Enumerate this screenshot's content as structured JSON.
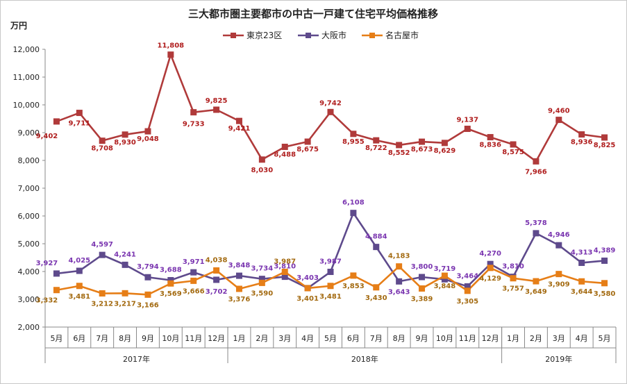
{
  "chart_data": {
    "type": "line",
    "title": "三大都市圏主要都市の中古一戸建て住宅平均価格推移",
    "yunit": "万円",
    "ylim": [
      2000,
      12000
    ],
    "ytick_step": 1000,
    "yticks": [
      "2,000",
      "3,000",
      "4,000",
      "5,000",
      "6,000",
      "7,000",
      "8,000",
      "9,000",
      "10,000",
      "11,000",
      "12,000"
    ],
    "months": [
      "5月",
      "6月",
      "7月",
      "8月",
      "9月",
      "10月",
      "11月",
      "12月",
      "1月",
      "2月",
      "3月",
      "4月",
      "5月",
      "6月",
      "7月",
      "8月",
      "9月",
      "10月",
      "11月",
      "12月",
      "1月",
      "2月",
      "3月",
      "4月",
      "5月"
    ],
    "years": [
      {
        "label": "2017年",
        "start": 0,
        "end": 7
      },
      {
        "label": "2018年",
        "start": 8,
        "end": 19
      },
      {
        "label": "2019年",
        "start": 20,
        "end": 24
      }
    ],
    "legend_position": "top-center",
    "grid": false,
    "series": [
      {
        "name": "東京23区",
        "color": "#b03a3a",
        "label_color": "#b01e1e",
        "marker": "square",
        "values": [
          9402,
          9711,
          8708,
          8930,
          9048,
          11808,
          9733,
          9825,
          9421,
          8030,
          8488,
          8675,
          9742,
          8955,
          8722,
          8552,
          8673,
          8629,
          9137,
          8836,
          8575,
          7966,
          9460,
          8936,
          8825
        ],
        "labels": [
          "9,402",
          "9,711",
          "8,708",
          "8,930",
          "9,048",
          "11,808",
          "9,733",
          "9,825",
          "9,421",
          "8,030",
          "8,488",
          "8,675",
          "9,742",
          "8,955",
          "8,722",
          "8,552",
          "8,673",
          "8,629",
          "9,137",
          "8,836",
          "8,575",
          "7,966",
          "9,460",
          "8,936",
          "8,825"
        ]
      },
      {
        "name": "大阪市",
        "color": "#5e4a8c",
        "label_color": "#7a35b0",
        "marker": "square",
        "values": [
          3927,
          4025,
          4597,
          4241,
          3794,
          3688,
          3971,
          3702,
          3848,
          3734,
          3810,
          3403,
          3987,
          6108,
          4884,
          3643,
          3800,
          3719,
          3464,
          4270,
          3810,
          5378,
          4946,
          4313,
          4389
        ],
        "labels": [
          "3,927",
          "4,025",
          "4,597",
          "4,241",
          "3,794",
          "3,688",
          "3,971",
          "3,702",
          "3,848",
          "3,734",
          "3,810",
          "3,403",
          "3,987",
          "6,108",
          "4,884",
          "3,643",
          "3,800",
          "3,719",
          "3,464",
          "4,270",
          "3,810",
          "5,378",
          "4,946",
          "4,313",
          "4,389"
        ]
      },
      {
        "name": "名古屋市",
        "color": "#e67e17",
        "label_color": "#a36a10",
        "marker": "square",
        "values": [
          3332,
          3481,
          3212,
          3217,
          3166,
          3569,
          3666,
          4038,
          3376,
          3590,
          3987,
          3401,
          3481,
          3853,
          3430,
          4183,
          3389,
          3848,
          3305,
          4129,
          3757,
          3649,
          3909,
          3644,
          3580
        ],
        "labels": [
          "3,332",
          "3,481",
          "3,212",
          "3,217",
          "3,166",
          "3,569",
          "3,666",
          "4,038",
          "3,376",
          "3,590",
          "3,987",
          "3,401",
          "3,481",
          "3,853",
          "3,430",
          "4,183",
          "3,389",
          "3,848",
          "3,305",
          "4,129",
          "3,757",
          "3,649",
          "3,909",
          "3,644",
          "3,580"
        ]
      }
    ]
  }
}
